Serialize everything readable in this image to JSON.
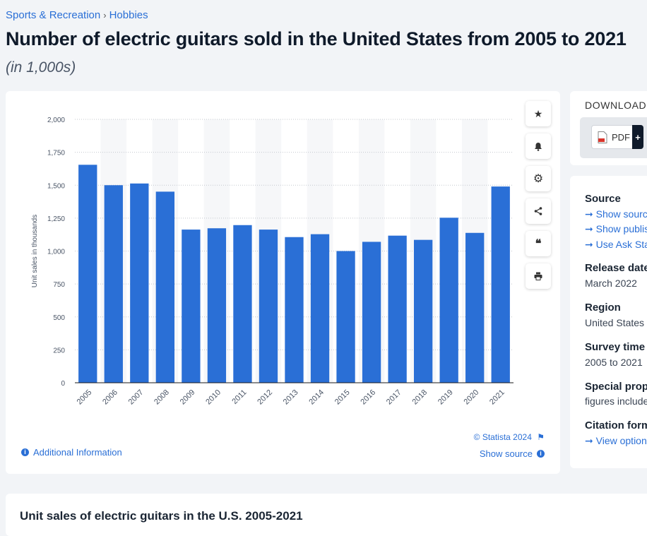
{
  "breadcrumb": {
    "items": [
      "Sports & Recreation",
      "Hobbies"
    ],
    "separator": "›"
  },
  "page": {
    "title": "Number of electric guitars sold in the United States from 2005 to 2021",
    "subtitle": "(in 1,000s)"
  },
  "colors": {
    "bar": "#2a6fd6",
    "accent": "#2a6fd6"
  },
  "toolbar": {
    "icons": [
      "star-icon",
      "bell-icon",
      "gear-icon",
      "share-icon",
      "quote-icon",
      "print-icon"
    ]
  },
  "chart_footer": {
    "additional_info": "Additional Information",
    "copyright": "© Statista 2024",
    "show_source": "Show source"
  },
  "download": {
    "title": "DOWNLOAD",
    "pdf_label": "PDF",
    "plus": "+"
  },
  "source_panel": {
    "source_heading": "Source",
    "links": [
      "Show source",
      "Show publisher information",
      "Use Ask Statista Research Service"
    ],
    "release_heading": "Release date",
    "release_value": "March 2022",
    "region_heading": "Region",
    "region_value": "United States",
    "survey_heading": "Survey time period",
    "survey_value": "2005 to 2021",
    "special_heading": "Special properties",
    "special_value": "figures include",
    "citation_heading": "Citation formats",
    "citation_link": "View options"
  },
  "bottom": {
    "title": "Unit sales of electric guitars in the U.S. 2005-2021"
  },
  "chart_data": {
    "type": "bar",
    "title": "",
    "xlabel": "",
    "ylabel": "Unit sales in thousands",
    "ylim": [
      0,
      2000
    ],
    "yticks": [
      0,
      250,
      500,
      750,
      1000,
      1250,
      1500,
      1750,
      2000
    ],
    "ytick_labels": [
      "0",
      "250",
      "500",
      "750",
      "1,000",
      "1,250",
      "1,500",
      "1,750",
      "2,000"
    ],
    "categories": [
      "2005",
      "2006",
      "2007",
      "2008",
      "2009",
      "2010",
      "2011",
      "2012",
      "2013",
      "2014",
      "2015",
      "2016",
      "2017",
      "2018",
      "2019",
      "2020",
      "2021"
    ],
    "values": [
      1655,
      1500,
      1513,
      1451,
      1163,
      1173,
      1197,
      1163,
      1106,
      1128,
      1000,
      1070,
      1117,
      1085,
      1253,
      1138,
      1490
    ],
    "grid": true,
    "legend": "none"
  }
}
